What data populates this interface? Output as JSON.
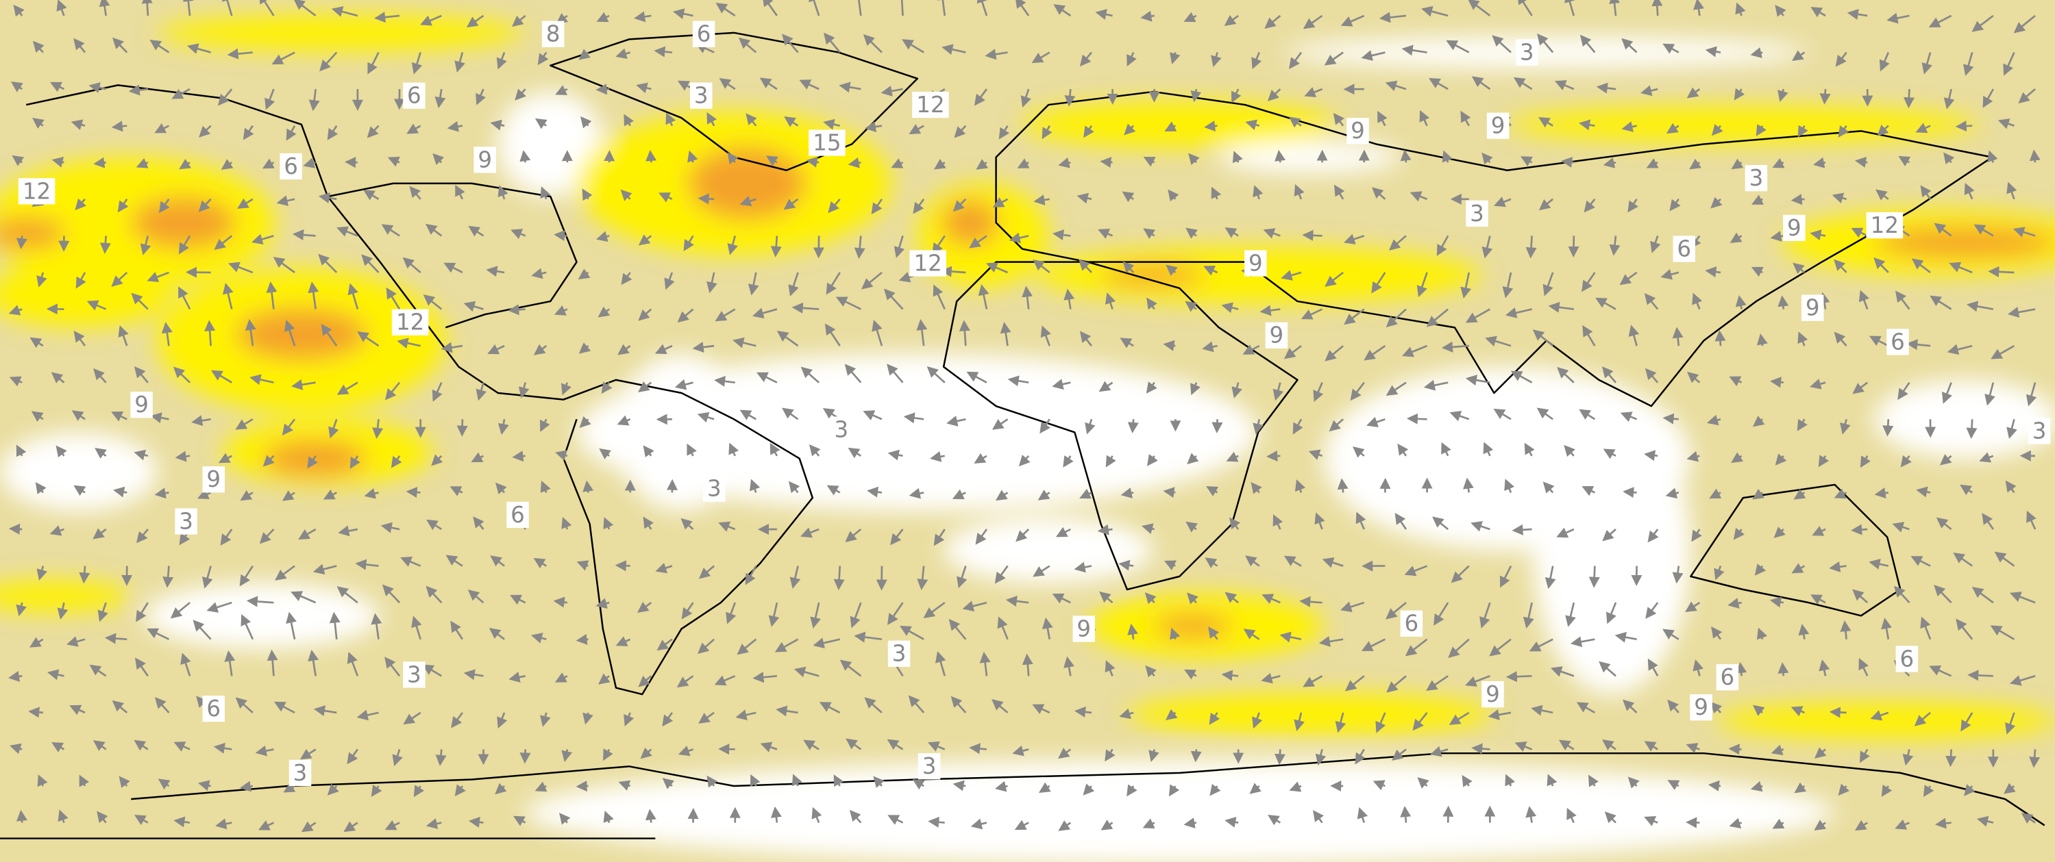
{
  "contour_labels": [
    8,
    6,
    3,
    6,
    12,
    15,
    9,
    6,
    12,
    9,
    9,
    3,
    3,
    3,
    6,
    9,
    12,
    9,
    6,
    12,
    9,
    9,
    12,
    9,
    9,
    3,
    3,
    6,
    3,
    3,
    9,
    6,
    3,
    9,
    6,
    9,
    6,
    3,
    6,
    3,
    3
  ]
}
